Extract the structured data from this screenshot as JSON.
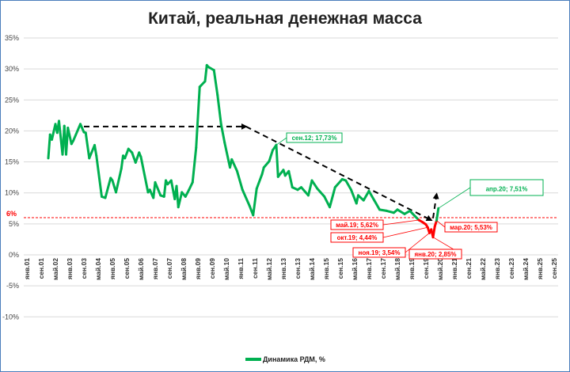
{
  "chart_data": {
    "type": "line",
    "title": "Китай, реальная денежная масса",
    "ylim": [
      -10,
      35
    ],
    "y_ticks": [
      "35%",
      "30%",
      "25%",
      "20%",
      "15%",
      "10%",
      "5%",
      "0%",
      "-5%",
      "-10%"
    ],
    "y_tick_values": [
      35,
      30,
      25,
      20,
      15,
      10,
      5,
      0,
      -5,
      -10
    ],
    "x_tick_labels": [
      "янв.01",
      "сен.01",
      "май.02",
      "янв.03",
      "сен.03",
      "май.04",
      "янв.05",
      "сен.05",
      "май.06",
      "янв.07",
      "сен.07",
      "май.08",
      "янв.09",
      "сен.09",
      "май.10",
      "янв.11",
      "сен.11",
      "май.12",
      "янв.13",
      "сен.13",
      "май.14",
      "янв.15",
      "сен.15",
      "май.16",
      "янв.17",
      "сен.17",
      "май.18",
      "янв.19",
      "сен.19",
      "май.20",
      "янв.21",
      "сен.21",
      "май.22",
      "янв.23",
      "сен.23",
      "май.24",
      "янв.25",
      "сен.25"
    ],
    "x_range": [
      "2001-01",
      "2025-09"
    ],
    "grid": true,
    "legend_position": "bottom",
    "threshold": {
      "label": "6%",
      "value": 6,
      "color": "#ff0000"
    },
    "series": [
      {
        "name": "Динамика РДМ, %",
        "color": "#00b050",
        "highlight_color": "#ff0000",
        "highlight_range": [
          "2019-05",
          "2020-03"
        ],
        "points": [
          [
            "2002-01",
            15.6
          ],
          [
            "2002-02",
            19.4
          ],
          [
            "2002-03",
            18.6
          ],
          [
            "2002-05",
            21.1
          ],
          [
            "2002-06",
            19.7
          ],
          [
            "2002-07",
            21.6
          ],
          [
            "2002-09",
            16.2
          ],
          [
            "2002-10",
            20.8
          ],
          [
            "2002-11",
            16.2
          ],
          [
            "2002-12",
            20.5
          ],
          [
            "2003-02",
            17.9
          ],
          [
            "2003-03",
            18.4
          ],
          [
            "2003-07",
            21.1
          ],
          [
            "2003-09",
            19.8
          ],
          [
            "2003-10",
            19.7
          ],
          [
            "2003-12",
            15.6
          ],
          [
            "2004-03",
            17.7
          ],
          [
            "2004-04",
            16.0
          ],
          [
            "2004-07",
            9.4
          ],
          [
            "2004-09",
            9.2
          ],
          [
            "2004-12",
            12.4
          ],
          [
            "2005-01",
            12.0
          ],
          [
            "2005-03",
            10.1
          ],
          [
            "2005-06",
            13.9
          ],
          [
            "2005-07",
            16.0
          ],
          [
            "2005-08",
            15.6
          ],
          [
            "2005-10",
            17.1
          ],
          [
            "2005-12",
            16.5
          ],
          [
            "2006-02",
            14.9
          ],
          [
            "2006-04",
            16.5
          ],
          [
            "2006-05",
            15.8
          ],
          [
            "2006-09",
            10.1
          ],
          [
            "2006-10",
            10.5
          ],
          [
            "2006-12",
            9.2
          ],
          [
            "2007-01",
            11.7
          ],
          [
            "2007-04",
            9.6
          ],
          [
            "2007-06",
            9.4
          ],
          [
            "2007-07",
            12.0
          ],
          [
            "2007-08",
            11.4
          ],
          [
            "2007-10",
            12.0
          ],
          [
            "2007-12",
            9.0
          ],
          [
            "2008-01",
            11.1
          ],
          [
            "2008-02",
            7.7
          ],
          [
            "2008-04",
            10.1
          ],
          [
            "2008-06",
            9.4
          ],
          [
            "2008-08",
            10.5
          ],
          [
            "2008-10",
            11.7
          ],
          [
            "2008-12",
            17.3
          ],
          [
            "2009-02",
            27.1
          ],
          [
            "2009-05",
            28.0
          ],
          [
            "2009-06",
            30.6
          ],
          [
            "2009-07",
            30.3
          ],
          [
            "2009-10",
            29.8
          ],
          [
            "2009-12",
            25.8
          ],
          [
            "2010-02",
            21.1
          ],
          [
            "2010-04",
            18.1
          ],
          [
            "2010-07",
            14.1
          ],
          [
            "2010-08",
            15.4
          ],
          [
            "2010-11",
            13.5
          ],
          [
            "2011-02",
            10.5
          ],
          [
            "2011-06",
            7.9
          ],
          [
            "2011-08",
            6.4
          ],
          [
            "2011-10",
            10.7
          ],
          [
            "2012-01",
            13.0
          ],
          [
            "2012-02",
            14.1
          ],
          [
            "2012-05",
            15.1
          ],
          [
            "2012-07",
            16.9
          ],
          [
            "2012-09",
            17.73
          ],
          [
            "2012-10",
            12.6
          ],
          [
            "2013-01",
            13.7
          ],
          [
            "2013-02",
            12.8
          ],
          [
            "2013-04",
            13.5
          ],
          [
            "2013-06",
            10.9
          ],
          [
            "2013-09",
            10.5
          ],
          [
            "2013-11",
            10.9
          ],
          [
            "2014-03",
            9.6
          ],
          [
            "2014-05",
            12.0
          ],
          [
            "2014-08",
            10.7
          ],
          [
            "2014-12",
            9.4
          ],
          [
            "2015-03",
            7.7
          ],
          [
            "2015-06",
            10.9
          ],
          [
            "2015-10",
            12.2
          ],
          [
            "2015-12",
            12.0
          ],
          [
            "2016-03",
            10.5
          ],
          [
            "2016-06",
            8.3
          ],
          [
            "2016-07",
            9.6
          ],
          [
            "2016-10",
            8.8
          ],
          [
            "2017-01",
            10.3
          ],
          [
            "2017-04",
            8.8
          ],
          [
            "2017-07",
            7.3
          ],
          [
            "2017-11",
            7.1
          ],
          [
            "2018-03",
            6.8
          ],
          [
            "2018-05",
            7.3
          ],
          [
            "2018-09",
            6.6
          ],
          [
            "2018-12",
            7.1
          ],
          [
            "2019-03",
            6.2
          ],
          [
            "2019-05",
            5.62
          ],
          [
            "2019-07",
            5.3
          ],
          [
            "2019-09",
            4.9
          ],
          [
            "2019-10",
            4.44
          ],
          [
            "2019-11",
            3.54
          ],
          [
            "2019-12",
            4.1
          ],
          [
            "2020-01",
            2.85
          ],
          [
            "2020-02",
            4.6
          ],
          [
            "2020-03",
            5.53
          ],
          [
            "2020-04",
            7.51
          ]
        ]
      }
    ],
    "annotations": [
      {
        "text": "сен.12; 17,73%",
        "date": "2012-09",
        "value": 17.73,
        "color": "#00b050"
      },
      {
        "text": "май.19; 5,62%",
        "date": "2019-05",
        "value": 5.62,
        "color": "#ff0000"
      },
      {
        "text": "окт.19; 4,44%",
        "date": "2019-10",
        "value": 4.44,
        "color": "#ff0000"
      },
      {
        "text": "ноя.19; 3,54%",
        "date": "2019-11",
        "value": 3.54,
        "color": "#ff0000"
      },
      {
        "text": "янв.20; 2,85%",
        "date": "2020-01",
        "value": 2.85,
        "color": "#ff0000"
      },
      {
        "text": "мар.20; 5,53%",
        "date": "2020-03",
        "value": 5.53,
        "color": "#ff0000"
      },
      {
        "text": "апр.20; 7,51%",
        "date": "2020-04",
        "value": 7.51,
        "color": "#00b050"
      }
    ],
    "trend_arrows": [
      {
        "from": [
          "2003-09",
          20.7
        ],
        "to": [
          "2011-04",
          20.7
        ]
      },
      {
        "from": [
          "2011-04",
          20.7
        ],
        "to": [
          "2019-12",
          5.6
        ]
      },
      {
        "from": [
          "2020-01",
          5.9
        ],
        "to": [
          "2020-03",
          9.8
        ]
      }
    ]
  }
}
